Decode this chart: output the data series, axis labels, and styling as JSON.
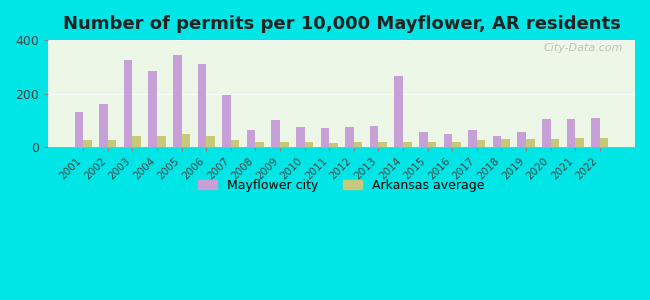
{
  "title": "Number of permits per 10,000 Mayflower, AR residents",
  "years": [
    2001,
    2002,
    2003,
    2004,
    2005,
    2006,
    2007,
    2008,
    2009,
    2010,
    2011,
    2012,
    2013,
    2014,
    2015,
    2016,
    2017,
    2018,
    2019,
    2020,
    2021,
    2022
  ],
  "mayflower": [
    130,
    160,
    325,
    285,
    345,
    310,
    195,
    65,
    100,
    75,
    70,
    75,
    80,
    265,
    55,
    50,
    65,
    40,
    55,
    105,
    105,
    110
  ],
  "arkansas": [
    25,
    25,
    40,
    40,
    50,
    40,
    25,
    20,
    20,
    20,
    15,
    20,
    20,
    20,
    20,
    20,
    25,
    30,
    30,
    30,
    35,
    35
  ],
  "mayflower_color": "#c8a0d8",
  "arkansas_color": "#c8c87a",
  "bg_outer": "#00e5e5",
  "bg_plot": "#edf7e8",
  "ylim": [
    0,
    400
  ],
  "yticks": [
    0,
    200,
    400
  ],
  "title_fontsize": 13,
  "legend_label_city": "Mayflower city",
  "legend_label_state": "Arkansas average"
}
